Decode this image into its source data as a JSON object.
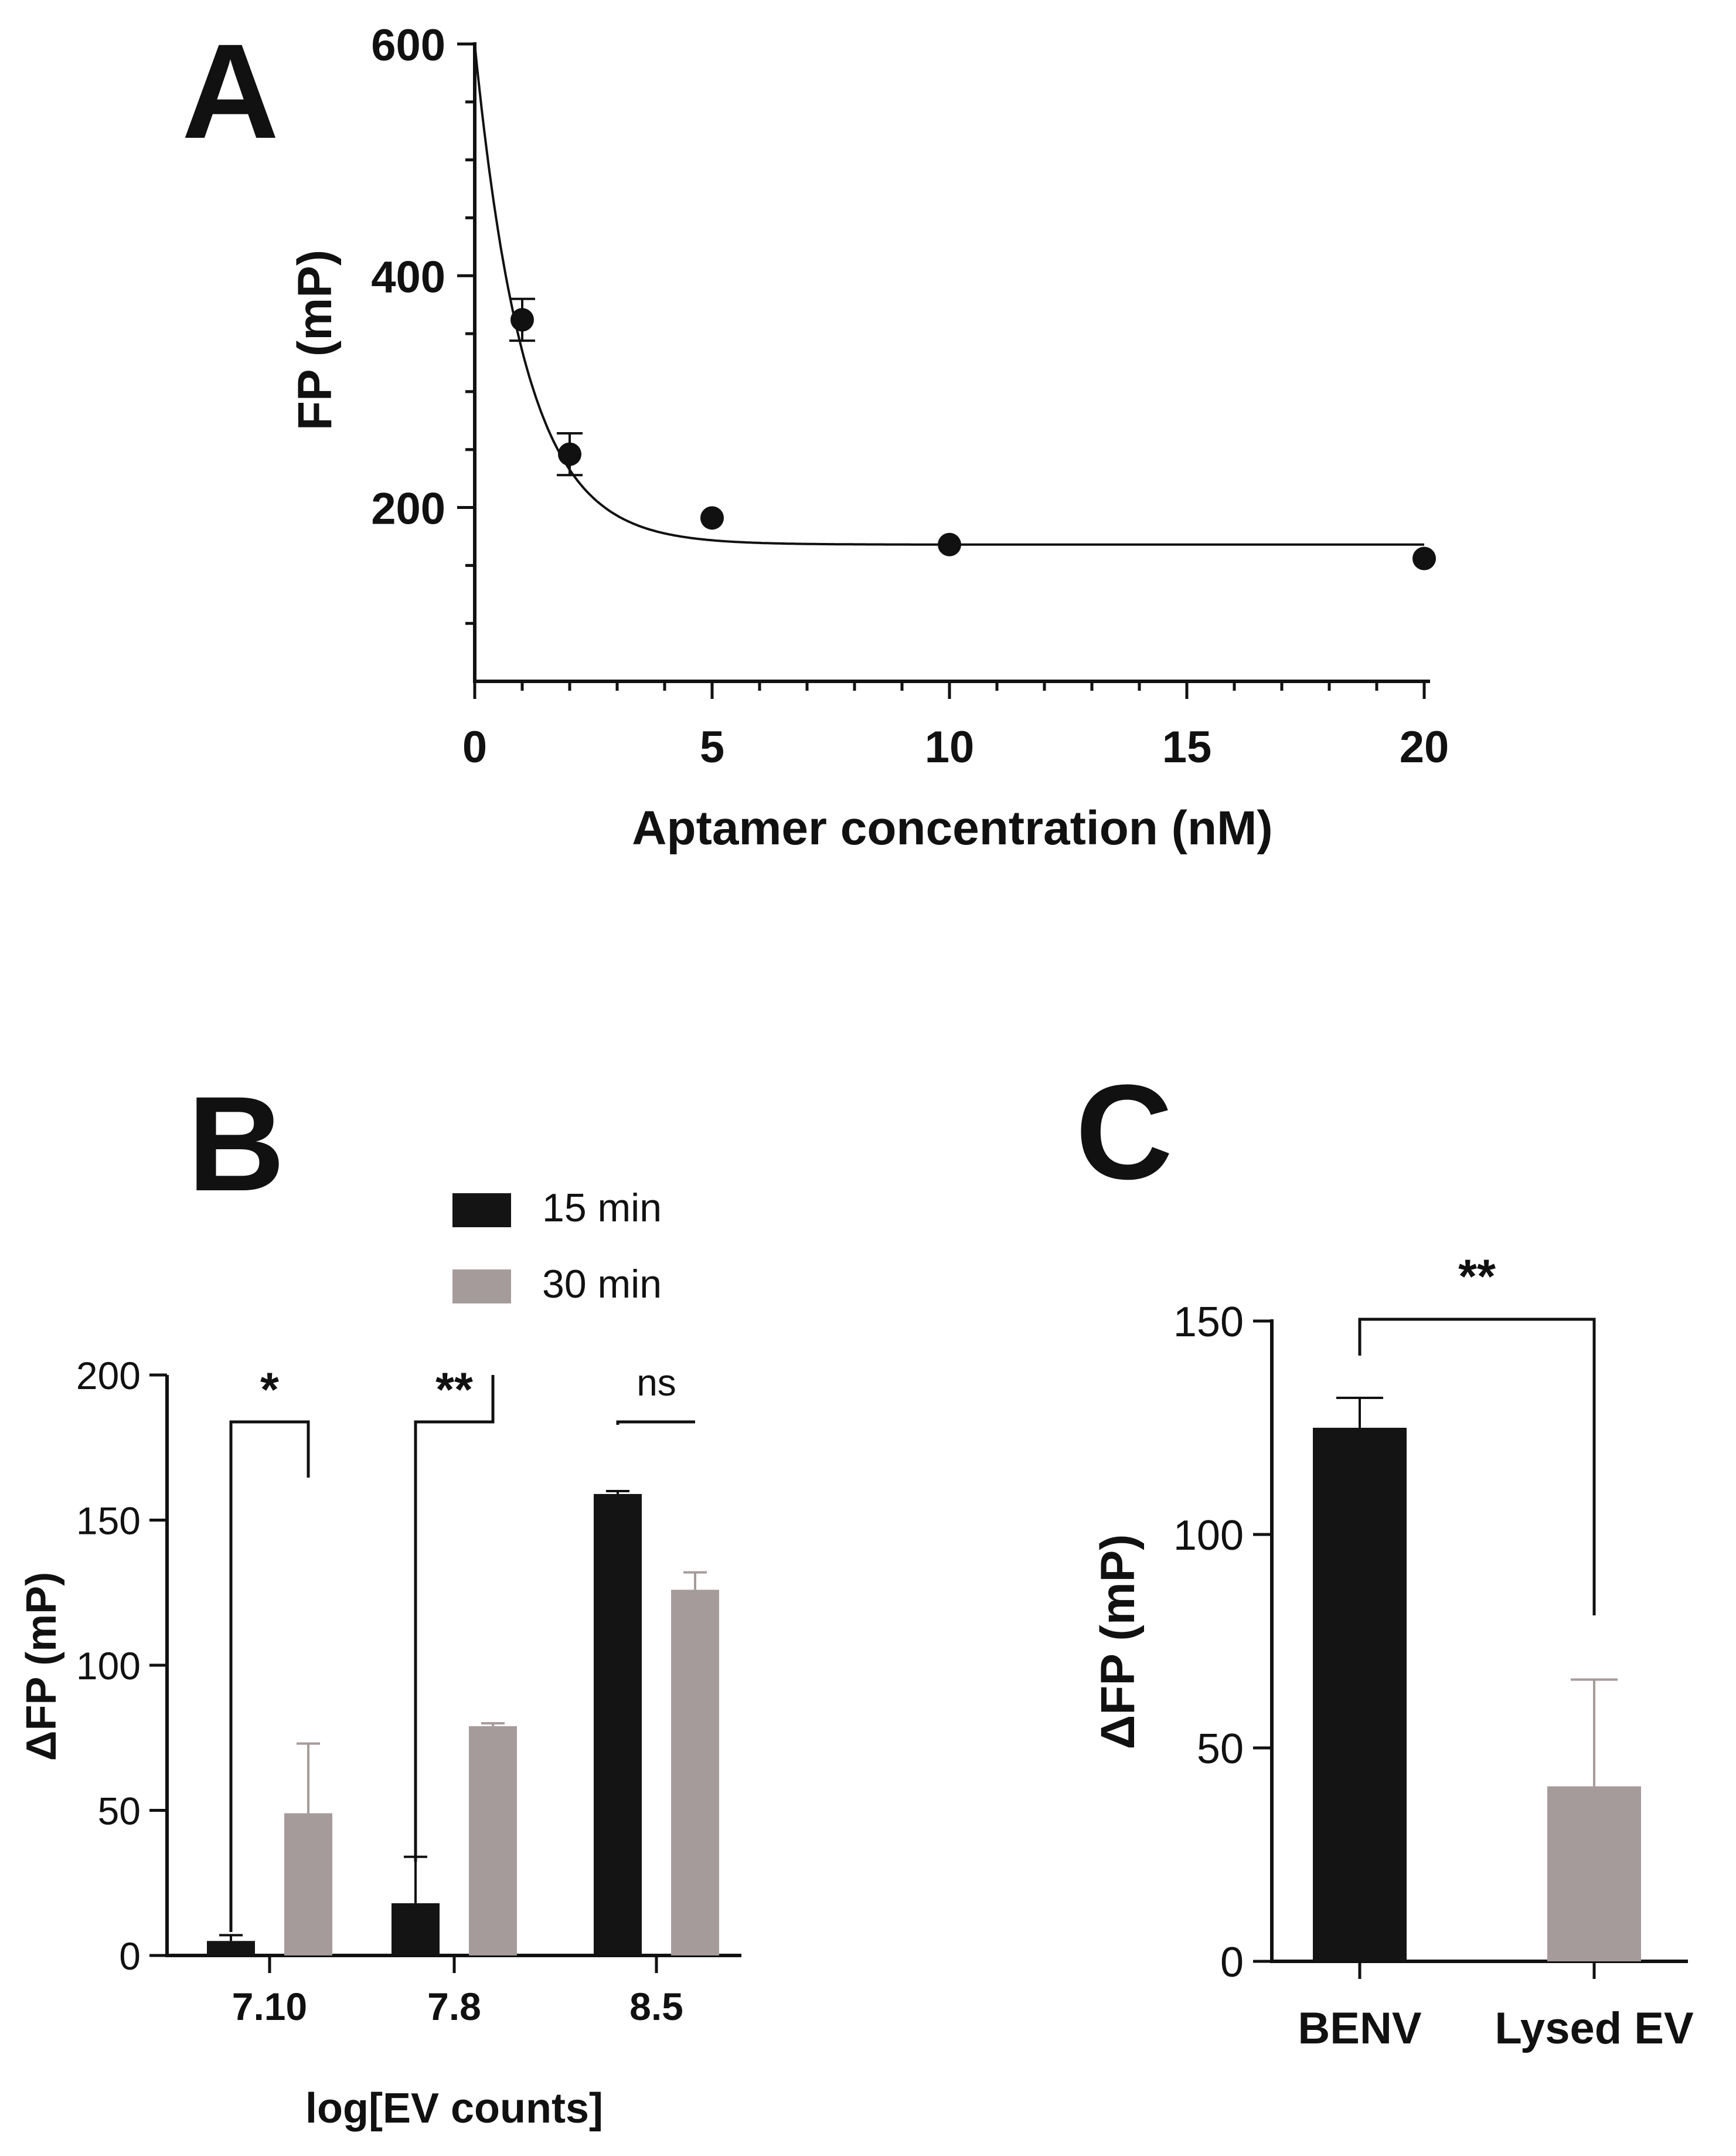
{
  "colors": {
    "black_bar": "#141414",
    "gray_bar": "#a69b9b",
    "axis": "#111111"
  },
  "chart_data": [
    {
      "panel": "A",
      "type": "scatter",
      "fit": "exponential decay",
      "xlabel": "Aptamer concentration (nM)",
      "ylabel": "FP (mP)",
      "xlim": [
        0,
        20
      ],
      "ylim": [
        50,
        600
      ],
      "xticks": [
        0,
        5,
        10,
        15,
        20
      ],
      "yticks": [
        200,
        400,
        600
      ],
      "points": [
        {
          "x": 1,
          "y": 362,
          "err": 18
        },
        {
          "x": 2,
          "y": 246,
          "err": 18
        },
        {
          "x": 5,
          "y": 191,
          "err": 0
        },
        {
          "x": 10,
          "y": 168,
          "err": 0
        },
        {
          "x": 20,
          "y": 156,
          "err": 0
        }
      ],
      "fit_params": {
        "y0": 600,
        "plateau": 168,
        "k": 0.95
      }
    },
    {
      "panel": "B",
      "type": "bar",
      "xlabel": "log[EV counts]",
      "ylabel": "ΔFP (mP)",
      "ylim": [
        0,
        200
      ],
      "yticks": [
        0,
        50,
        100,
        150,
        200
      ],
      "categories": [
        "7.10",
        "7.8",
        "8.5"
      ],
      "series": [
        {
          "name": "15 min",
          "values": [
            5,
            18,
            159
          ],
          "errors": [
            2,
            16,
            1
          ]
        },
        {
          "name": "30 min",
          "values": [
            49,
            79,
            126
          ],
          "errors": [
            24,
            1,
            6
          ]
        }
      ],
      "significance": [
        "*",
        "**",
        "ns"
      ],
      "legend": [
        "15 min",
        "30 min"
      ]
    },
    {
      "panel": "C",
      "type": "bar",
      "xlabel": "",
      "ylabel": "ΔFP (mP)",
      "ylim": [
        0,
        150
      ],
      "yticks": [
        0,
        50,
        100,
        150
      ],
      "categories": [
        "BENV",
        "Lysed EV"
      ],
      "values": [
        125,
        41
      ],
      "errors": [
        7,
        25
      ],
      "significance": "**"
    }
  ]
}
